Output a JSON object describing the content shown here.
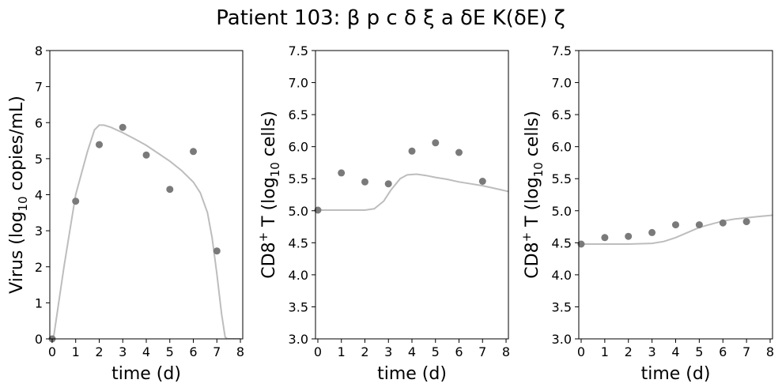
{
  "suptitle": "Patient 103: β p c δ ξ a δE K(δE) ζ",
  "colors": {
    "observed": "#7a7a7a",
    "model": "#bdbdbd"
  },
  "chart_data": [
    {
      "type": "scatter",
      "title": "",
      "xlabel": "time (d)",
      "ylabel": {
        "pre": "Virus (log",
        "sub": "10",
        "post": " copies/mL)"
      },
      "xlim": [
        -0.1,
        8.1
      ],
      "ylim": [
        0,
        8
      ],
      "xticks": [
        0,
        1,
        2,
        3,
        4,
        5,
        6,
        7,
        8
      ],
      "yticks": [
        0,
        1,
        2,
        3,
        4,
        5,
        6,
        7,
        8
      ],
      "yticklabels": [
        "0",
        "1",
        "2",
        "3",
        "4",
        "5",
        "6",
        "7",
        "8"
      ],
      "points": {
        "x": [
          0,
          1,
          2,
          3,
          4,
          5,
          6,
          7
        ],
        "y": [
          0.0,
          3.82,
          5.39,
          5.87,
          5.1,
          4.15,
          5.2,
          2.44
        ]
      },
      "model": {
        "x": [
          0.05,
          0.5,
          1.0,
          1.5,
          1.8,
          2.0,
          2.2,
          2.5,
          3.0,
          3.5,
          4.0,
          4.5,
          5.0,
          5.5,
          6.0,
          6.3,
          6.6,
          6.8,
          7.0,
          7.2,
          7.35,
          7.45,
          8.0
        ],
        "y": [
          0.0,
          2.0,
          4.0,
          5.2,
          5.8,
          5.93,
          5.93,
          5.87,
          5.72,
          5.55,
          5.37,
          5.15,
          4.93,
          4.67,
          4.35,
          4.05,
          3.5,
          2.8,
          1.8,
          0.7,
          0.05,
          0.0,
          0.0
        ]
      }
    },
    {
      "type": "scatter",
      "title": "",
      "xlabel": "time (d)",
      "ylabel": {
        "pre": "CD8",
        "sup": "+",
        "mid": " T (log",
        "sub": "10",
        "post": " cells)"
      },
      "xlim": [
        -0.1,
        8.1
      ],
      "ylim": [
        3.0,
        7.5
      ],
      "xticks": [
        0,
        1,
        2,
        3,
        4,
        5,
        6,
        7,
        8
      ],
      "yticks": [
        3.0,
        3.5,
        4.0,
        4.5,
        5.0,
        5.5,
        6.0,
        6.5,
        7.0,
        7.5
      ],
      "yticklabels": [
        "3.0",
        "3.5",
        "4.0",
        "4.5",
        "5.0",
        "5.5",
        "6.0",
        "6.5",
        "7.0",
        "7.5"
      ],
      "points": {
        "x": [
          0,
          1,
          2,
          3,
          4,
          5,
          6,
          7
        ],
        "y": [
          5.01,
          5.59,
          5.45,
          5.42,
          5.93,
          6.06,
          5.91,
          5.46
        ]
      },
      "model": {
        "x": [
          -0.1,
          1.0,
          2.0,
          2.4,
          2.8,
          3.1,
          3.5,
          3.8,
          4.2,
          4.6,
          5.0,
          5.5,
          6.0,
          6.5,
          7.0,
          7.5,
          8.1
        ],
        "y": [
          5.01,
          5.01,
          5.01,
          5.03,
          5.15,
          5.32,
          5.5,
          5.56,
          5.57,
          5.55,
          5.52,
          5.49,
          5.45,
          5.42,
          5.39,
          5.35,
          5.3
        ]
      }
    },
    {
      "type": "scatter",
      "title": "",
      "xlabel": "time (d)",
      "ylabel": {
        "pre": "CD8",
        "sup": "+",
        "mid": " T (log",
        "sub": "10",
        "post": " cells)"
      },
      "xlim": [
        -0.1,
        8.1
      ],
      "ylim": [
        3.0,
        7.5
      ],
      "xticks": [
        0,
        1,
        2,
        3,
        4,
        5,
        6,
        7,
        8
      ],
      "yticks": [
        3.0,
        3.5,
        4.0,
        4.5,
        5.0,
        5.5,
        6.0,
        6.5,
        7.0,
        7.5
      ],
      "yticklabels": [
        "3.0",
        "3.5",
        "4.0",
        "4.5",
        "5.0",
        "5.5",
        "6.0",
        "6.5",
        "7.0",
        "7.5"
      ],
      "points": {
        "x": [
          0,
          1,
          2,
          3,
          4,
          5,
          6,
          7
        ],
        "y": [
          4.48,
          4.58,
          4.6,
          4.66,
          4.78,
          4.78,
          4.81,
          4.83
        ]
      },
      "model": {
        "x": [
          -0.1,
          1.0,
          2.0,
          3.0,
          3.5,
          4.0,
          4.5,
          5.0,
          5.5,
          6.0,
          6.5,
          7.0,
          7.5,
          8.1
        ],
        "y": [
          4.48,
          4.48,
          4.48,
          4.49,
          4.52,
          4.58,
          4.66,
          4.74,
          4.79,
          4.84,
          4.87,
          4.89,
          4.91,
          4.93
        ]
      }
    }
  ]
}
